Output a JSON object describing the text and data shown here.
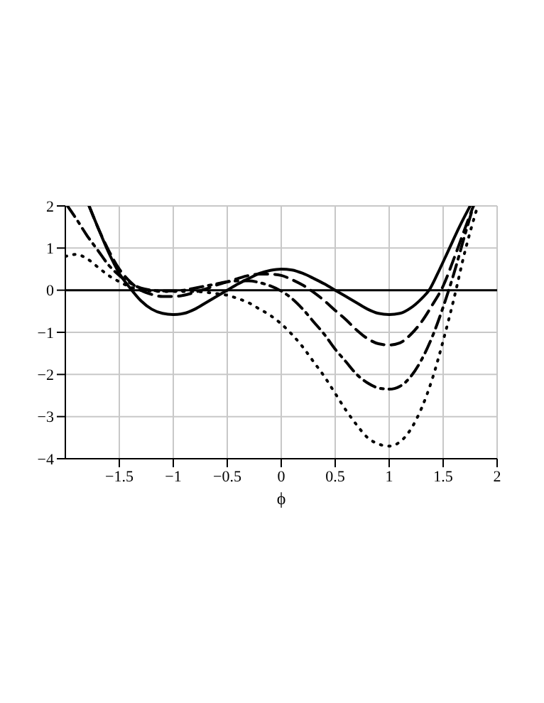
{
  "chart_data": {
    "type": "line",
    "xlabel": "ϕ",
    "xlim": [
      -2,
      2
    ],
    "ylim": [
      -4,
      2
    ],
    "xticks": [
      -1.5,
      -1,
      -0.5,
      0,
      0.5,
      1,
      1.5,
      2
    ],
    "yticks": [
      -4,
      -3,
      -2,
      -1,
      0,
      1,
      2
    ],
    "grid": true,
    "marker": "none",
    "legend": false,
    "ref_lines": [
      {
        "axis": "y",
        "value": 0,
        "color": "#000000"
      }
    ],
    "series": [
      {
        "color": "#000000",
        "line_style": "solid",
        "x": [
          -1.78,
          -1.7,
          -1.6,
          -1.5,
          -1.4,
          -1.3,
          -1.2,
          -1.1,
          -1,
          -0.9,
          -0.8,
          -0.7,
          -0.6,
          -0.5,
          -0.4,
          -0.3,
          -0.2,
          -0.1,
          0,
          0.1,
          0.2,
          0.3,
          0.4,
          0.5,
          0.6,
          0.7,
          0.8,
          0.9,
          1,
          1.1,
          1.2,
          1.3,
          1.37,
          1.45,
          1.55,
          1.65,
          1.75
        ],
        "values": [
          2,
          1.5,
          0.9,
          0.4,
          0.05,
          -0.25,
          -0.45,
          -0.55,
          -0.58,
          -0.55,
          -0.45,
          -0.3,
          -0.15,
          0,
          0.15,
          0.28,
          0.4,
          0.47,
          0.5,
          0.48,
          0.4,
          0.28,
          0.15,
          0,
          -0.15,
          -0.3,
          -0.45,
          -0.55,
          -0.58,
          -0.55,
          -0.42,
          -0.2,
          0,
          0.4,
          0.95,
          1.5,
          2
        ]
      },
      {
        "color": "#000000",
        "line_style": "dashed",
        "x": [
          -1.78,
          -1.7,
          -1.6,
          -1.5,
          -1.4,
          -1.3,
          -1.2,
          -1.1,
          -1,
          -0.9,
          -0.8,
          -0.7,
          -0.6,
          -0.5,
          -0.4,
          -0.3,
          -0.2,
          -0.1,
          0,
          0.1,
          0.2,
          0.3,
          0.4,
          0.5,
          0.6,
          0.7,
          0.8,
          0.9,
          1,
          1.1,
          1.2,
          1.3,
          1.4,
          1.5,
          1.6,
          1.7,
          1.78
        ],
        "values": [
          2,
          1.5,
          0.95,
          0.5,
          0.2,
          0,
          -0.1,
          -0.15,
          -0.15,
          -0.12,
          -0.05,
          0.03,
          0.12,
          0.2,
          0.28,
          0.35,
          0.38,
          0.38,
          0.35,
          0.25,
          0.12,
          -0.05,
          -0.25,
          -0.48,
          -0.7,
          -0.95,
          -1.15,
          -1.27,
          -1.3,
          -1.25,
          -1.05,
          -0.75,
          -0.35,
          0.1,
          0.75,
          1.45,
          2
        ]
      },
      {
        "color": "#000000",
        "line_style": "dashdot",
        "x": [
          -1.98,
          -1.9,
          -1.8,
          -1.7,
          -1.6,
          -1.5,
          -1.4,
          -1.3,
          -1.2,
          -1.1,
          -1,
          -0.9,
          -0.8,
          -0.7,
          -0.6,
          -0.5,
          -0.4,
          -0.3,
          -0.2,
          -0.1,
          0,
          0.1,
          0.2,
          0.3,
          0.4,
          0.5,
          0.6,
          0.7,
          0.8,
          0.9,
          1,
          1.1,
          1.2,
          1.3,
          1.4,
          1.5,
          1.6,
          1.7,
          1.78
        ],
        "values": [
          2,
          1.7,
          1.3,
          0.95,
          0.6,
          0.35,
          0.17,
          0.05,
          0,
          -0.02,
          -0.02,
          0,
          0.05,
          0.1,
          0.15,
          0.2,
          0.22,
          0.22,
          0.18,
          0.1,
          -0.02,
          -0.2,
          -0.45,
          -0.75,
          -1.05,
          -1.4,
          -1.7,
          -2,
          -2.2,
          -2.32,
          -2.35,
          -2.28,
          -2.05,
          -1.65,
          -1.1,
          -0.4,
          0.4,
          1.3,
          2
        ]
      },
      {
        "color": "#000000",
        "line_style": "dotted",
        "x": [
          -2,
          -1.9,
          -1.8,
          -1.7,
          -1.6,
          -1.5,
          -1.4,
          -1.3,
          -1.2,
          -1.1,
          -1,
          -0.9,
          -0.8,
          -0.7,
          -0.6,
          -0.5,
          -0.4,
          -0.3,
          -0.2,
          -0.1,
          0,
          0.1,
          0.2,
          0.3,
          0.4,
          0.5,
          0.6,
          0.7,
          0.8,
          0.9,
          1,
          1.1,
          1.2,
          1.3,
          1.4,
          1.5,
          1.6,
          1.7,
          1.82
        ],
        "values": [
          0.8,
          0.85,
          0.75,
          0.55,
          0.35,
          0.2,
          0.08,
          0,
          -0.02,
          -0.03,
          -0.03,
          -0.03,
          -0.03,
          -0.05,
          -0.08,
          -0.12,
          -0.2,
          -0.3,
          -0.45,
          -0.6,
          -0.8,
          -1.05,
          -1.35,
          -1.7,
          -2.05,
          -2.45,
          -2.85,
          -3.2,
          -3.5,
          -3.65,
          -3.7,
          -3.6,
          -3.3,
          -2.8,
          -2.1,
          -1.2,
          -0.2,
          0.9,
          2
        ]
      }
    ]
  }
}
